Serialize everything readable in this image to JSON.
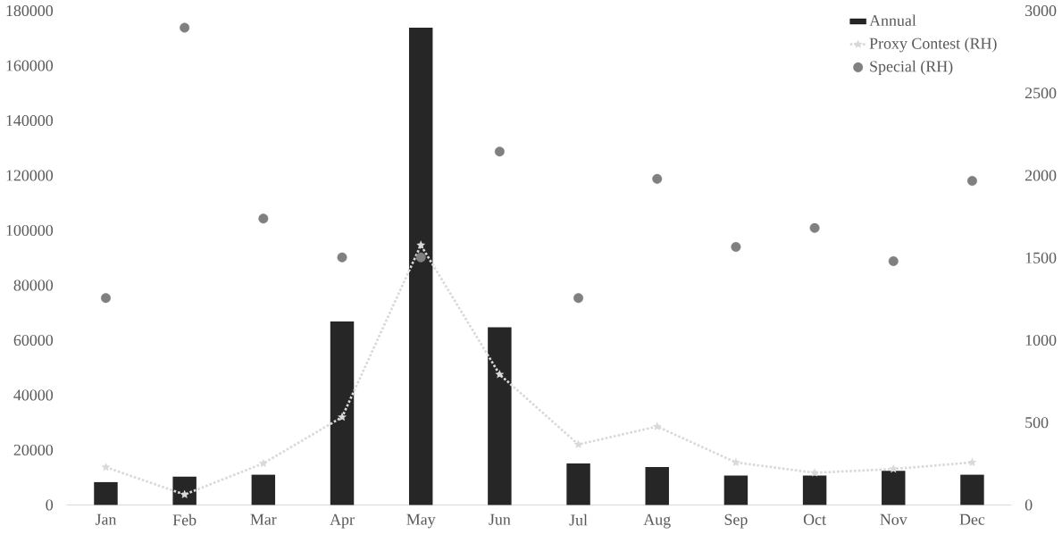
{
  "chart_data": {
    "type": "bar",
    "categories": [
      "Jan",
      "Feb",
      "Mar",
      "Apr",
      "May",
      "Jun",
      "Jul",
      "Aug",
      "Sep",
      "Oct",
      "Nov",
      "Dec"
    ],
    "series": [
      {
        "name": "Annual",
        "color": "#262626",
        "values": [
          8300,
          10300,
          11000,
          66800,
          173800,
          64700,
          15100,
          13800,
          10700,
          10700,
          12400,
          11000
        ]
      },
      {
        "name": "Proxy Contest (RH)",
        "type": "line",
        "axis": "y2",
        "color": "#d9d9d9",
        "marker": "star",
        "line_style": "dotted",
        "values": [
          229,
          63,
          252,
          533,
          1577,
          792,
          367,
          476,
          258,
          195,
          218,
          258
        ]
      },
      {
        "name": "Special (RH)",
        "type": "scatter",
        "axis": "y2",
        "color": "#808080",
        "marker": "circle",
        "values": [
          1256,
          2897,
          1738,
          1503,
          1503,
          2145,
          1256,
          1979,
          1566,
          1681,
          1480,
          1967
        ]
      }
    ],
    "ylim": [
      0,
      180000
    ],
    "yticks": [
      0,
      20000,
      40000,
      60000,
      80000,
      100000,
      120000,
      140000,
      160000,
      180000
    ],
    "y2lim": [
      0,
      3000
    ],
    "y2ticks": [
      0,
      500,
      1000,
      1500,
      2000,
      2500,
      3000
    ],
    "grid": false,
    "legend": "top right"
  }
}
